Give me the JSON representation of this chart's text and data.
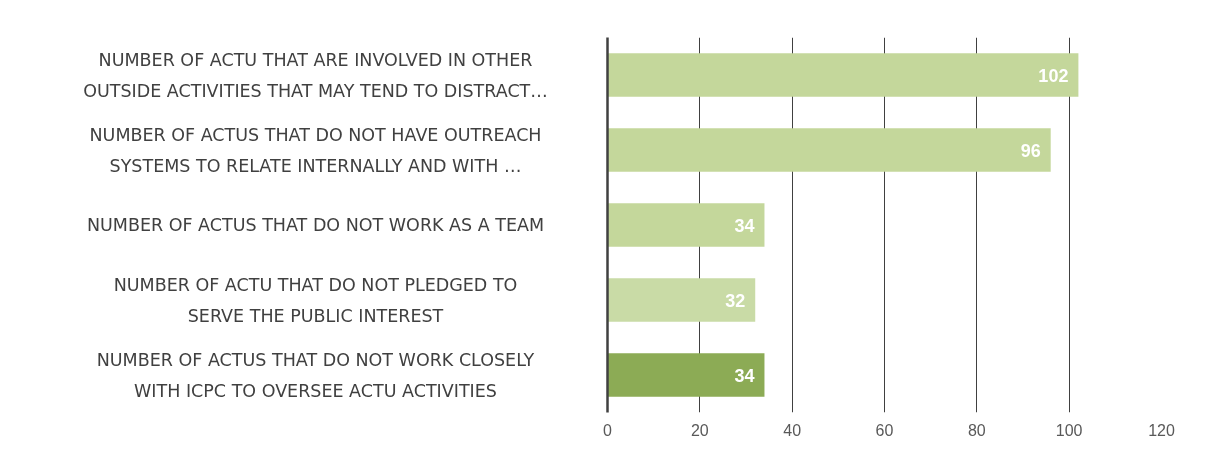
{
  "chart_data": {
    "type": "bar",
    "orientation": "horizontal",
    "categories": [
      "NUMBER OF ACTU THAT ARE INVOLVED IN OTHER\nOUTSIDE ACTIVITIES THAT MAY TEND TO DISTRACT…",
      "NUMBER OF ACTUS THAT DO NOT HAVE OUTREACH\nSYSTEMS TO RELATE INTERNALLY AND WITH …",
      "NUMBER OF ACTUS THAT DO NOT WORK AS A TEAM",
      "NUMBER OF ACTU THAT DO NOT PLEDGED TO\nSERVE THE PUBLIC INTEREST",
      "NUMBER OF ACTUS THAT DO NOT WORK CLOSELY\nWITH ICPC TO OVERSEE ACTU ACTIVITIES"
    ],
    "values": [
      102,
      96,
      34,
      32,
      34
    ],
    "colors": [
      "#c4d79b",
      "#c4d79b",
      "#c4d79b",
      "#c9dba6",
      "#8cab55"
    ],
    "xlim": [
      0,
      120
    ],
    "xticks": [
      0,
      20,
      40,
      60,
      80,
      100,
      120
    ],
    "grid": "x",
    "data_labels": true
  }
}
